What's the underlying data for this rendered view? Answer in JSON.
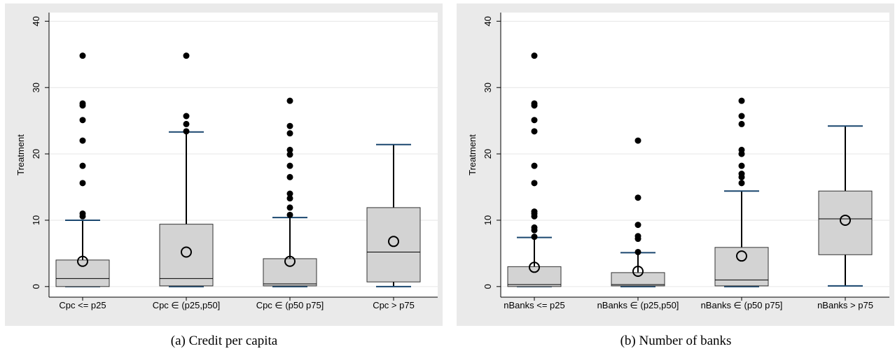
{
  "chart_data": [
    {
      "type": "box",
      "y_label": "Treatment",
      "caption": "(a) Credit per capita",
      "categories": [
        "Cpc <= p25",
        "Cpc ∈ (p25,p50]",
        "Cpc ∈ (p50 p75]",
        "Cpc > p75"
      ],
      "ylim": [
        -1.6,
        41.3
      ],
      "yticks": [
        0,
        10,
        20,
        30,
        40
      ],
      "grid": true,
      "box_color": "#d3d3d3",
      "cap_color": "#1a476f",
      "boxes": [
        {
          "whisker_low": 0,
          "q1": 0,
          "median": 1.2,
          "q3": 4.0,
          "whisker_high": 10.0,
          "mean": 3.8,
          "outliers": [
            34.8,
            27.6,
            27.3,
            25.1,
            22.0,
            18.2,
            15.6,
            11.0,
            10.6
          ]
        },
        {
          "whisker_low": 0,
          "q1": 0.1,
          "median": 1.2,
          "q3": 9.4,
          "whisker_high": 23.3,
          "mean": 5.2,
          "outliers": [
            34.8,
            25.7,
            24.5,
            23.4
          ]
        },
        {
          "whisker_low": 0,
          "q1": 0.1,
          "median": 0.4,
          "q3": 4.2,
          "whisker_high": 10.4,
          "mean": 3.8,
          "outliers": [
            28.0,
            24.2,
            23.1,
            20.6,
            19.9,
            18.2,
            16.5,
            14.0,
            13.3,
            11.9,
            10.8
          ]
        },
        {
          "whisker_low": 0,
          "q1": 0.7,
          "median": 5.2,
          "q3": 11.9,
          "whisker_high": 21.4,
          "mean": 6.8,
          "outliers": []
        }
      ]
    },
    {
      "type": "box",
      "y_label": "Treatment",
      "caption": "(b) Number of banks",
      "categories": [
        "nBanks <= p25",
        "nBanks ∈ (p25,p50]",
        "nBanks ∈ (p50 p75]",
        "nBanks > p75"
      ],
      "ylim": [
        -1.6,
        41.3
      ],
      "yticks": [
        0,
        10,
        20,
        30,
        40
      ],
      "grid": true,
      "box_color": "#d3d3d3",
      "cap_color": "#1a476f",
      "boxes": [
        {
          "whisker_low": 0,
          "q1": 0,
          "median": 0.3,
          "q3": 3.0,
          "whisker_high": 7.4,
          "mean": 2.9,
          "outliers": [
            34.8,
            27.6,
            27.3,
            25.1,
            23.4,
            18.2,
            15.6,
            11.3,
            11.0,
            10.6,
            8.9,
            8.5,
            7.5
          ]
        },
        {
          "whisker_low": 0,
          "q1": 0.1,
          "median": 0.3,
          "q3": 2.1,
          "whisker_high": 5.1,
          "mean": 2.3,
          "outliers": [
            22.0,
            13.4,
            9.3,
            7.6,
            7.2,
            5.2
          ]
        },
        {
          "whisker_low": 0,
          "q1": 0.1,
          "median": 1.0,
          "q3": 5.9,
          "whisker_high": 14.4,
          "mean": 4.6,
          "outliers": [
            28.0,
            25.7,
            24.5,
            20.6,
            20.0,
            18.2,
            17.0,
            16.5,
            15.6
          ]
        },
        {
          "whisker_low": 0.1,
          "q1": 4.8,
          "median": 10.2,
          "q3": 14.4,
          "whisker_high": 24.2,
          "mean": 10.0,
          "outliers": []
        }
      ]
    }
  ]
}
